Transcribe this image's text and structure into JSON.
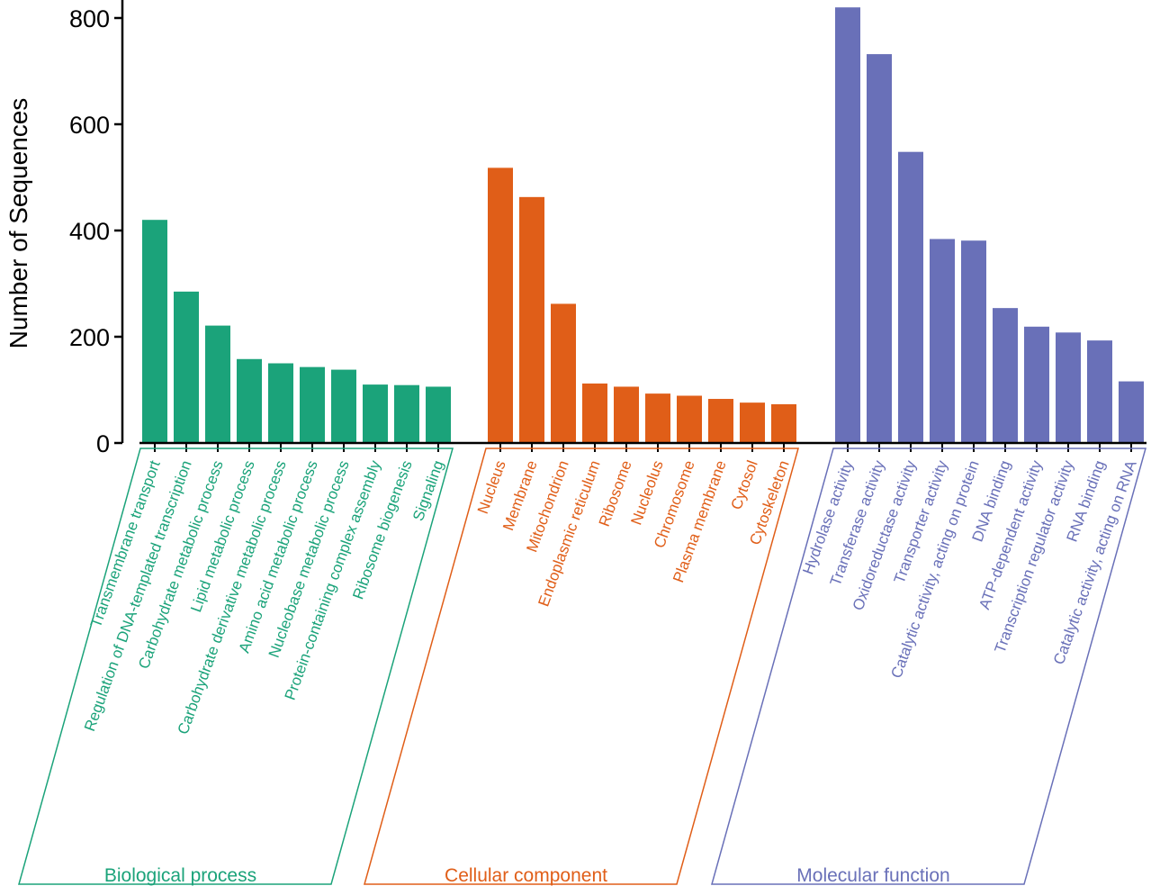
{
  "chart_data": {
    "type": "bar",
    "ylabel": "Number of Sequences",
    "ylim": [
      0,
      800
    ],
    "yticks": [
      0,
      200,
      400,
      600,
      800
    ],
    "groups": [
      {
        "name": "Biological process",
        "color": "#1ba37a",
        "categories": [
          "Transmembrane transport",
          "Regulation of DNA-templated transcription",
          "Carbohydrate metabolic process",
          "Lipid metabolic process",
          "Carbohydrate derivative metabolic process",
          "Amino acid metabolic process",
          "Nucleobase metabolic process",
          "Protein-containing complex assembly",
          "Ribosome biogenesis",
          "Signaling"
        ],
        "values": [
          420,
          285,
          221,
          158,
          150,
          143,
          138,
          110,
          109,
          106
        ]
      },
      {
        "name": "Cellular component",
        "color": "#e05e18",
        "categories": [
          "Nucleus",
          "Membrane",
          "Mitochondrion",
          "Endoplasmic reticulum",
          "Ribosome",
          "Nucleolus",
          "Chromosome",
          "Plasma membrane",
          "Cytosol",
          "Cytoskeleton"
        ],
        "values": [
          518,
          463,
          262,
          112,
          106,
          93,
          89,
          83,
          76,
          73
        ]
      },
      {
        "name": "Molecular function",
        "color": "#6970b8",
        "categories": [
          "Hydrolase activity",
          "Transferase activity",
          "Oxidoreductase activity",
          "Transporter activity",
          "Catalytic activity, acting on protein",
          "DNA binding",
          "ATP-dependent activity",
          "Transcription regulator activity",
          "RNA binding",
          "Catalytic activity, acting on RNA"
        ],
        "values": [
          820,
          732,
          548,
          384,
          381,
          254,
          219,
          208,
          193,
          116
        ]
      }
    ]
  }
}
